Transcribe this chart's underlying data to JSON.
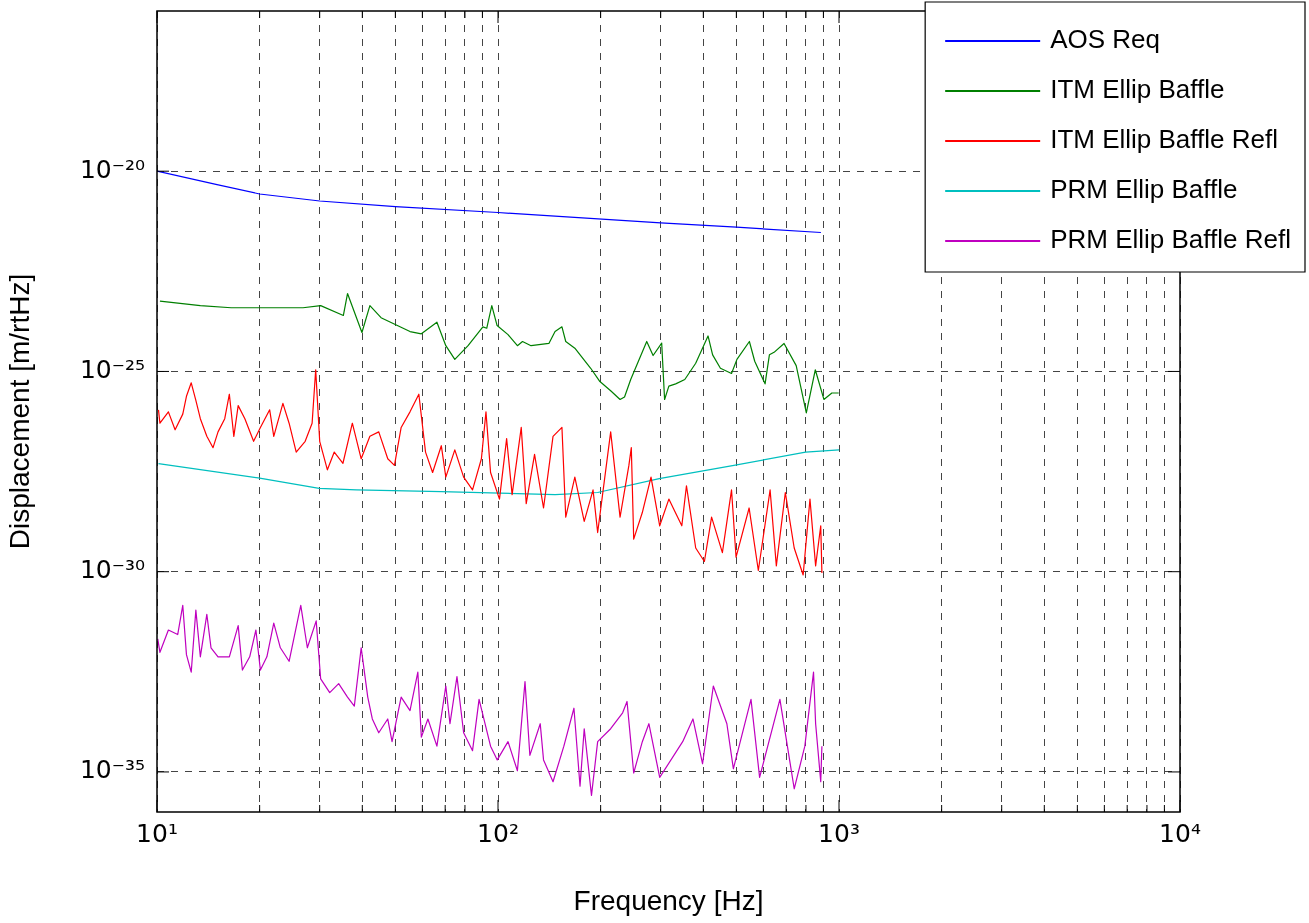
{
  "chart_data": {
    "type": "line",
    "xlabel": "Frequency [Hz]",
    "ylabel": "Displacement [m/rtHz]",
    "log": "xy",
    "grid": true,
    "legend": "top right",
    "xlim": [
      10,
      10000
    ],
    "ylim": [
      1e-36,
      1e-16
    ],
    "xticks": [
      {
        "value": 10,
        "label": "10¹"
      },
      {
        "value": 20,
        "label": null
      },
      {
        "value": 30,
        "label": null
      },
      {
        "value": 40,
        "label": null
      },
      {
        "value": 50,
        "label": null
      },
      {
        "value": 60,
        "label": null
      },
      {
        "value": 70,
        "label": null
      },
      {
        "value": 80,
        "label": null
      },
      {
        "value": 90,
        "label": null
      },
      {
        "value": 100,
        "label": "10²"
      },
      {
        "value": 200,
        "label": null
      },
      {
        "value": 300,
        "label": null
      },
      {
        "value": 400,
        "label": null
      },
      {
        "value": 500,
        "label": null
      },
      {
        "value": 600,
        "label": null
      },
      {
        "value": 700,
        "label": null
      },
      {
        "value": 800,
        "label": null
      },
      {
        "value": 900,
        "label": null
      },
      {
        "value": 1000,
        "label": "10³"
      },
      {
        "value": 2000,
        "label": null
      },
      {
        "value": 3000,
        "label": null
      },
      {
        "value": 4000,
        "label": null
      },
      {
        "value": 5000,
        "label": null
      },
      {
        "value": 6000,
        "label": null
      },
      {
        "value": 7000,
        "label": null
      },
      {
        "value": 8000,
        "label": null
      },
      {
        "value": 9000,
        "label": null
      },
      {
        "value": 10000,
        "label": "10⁴"
      }
    ],
    "yticks": [
      {
        "value": 1e-35,
        "label": "10⁻³⁵"
      },
      {
        "value": 1e-30,
        "label": "10⁻³⁰"
      },
      {
        "value": 1e-25,
        "label": "10⁻²⁵"
      },
      {
        "value": 1e-20,
        "label": "10⁻²⁰"
      }
    ],
    "series": [
      {
        "name": "AOS Req",
        "color": "#0000ff",
        "x": [
          10,
          15,
          20,
          30,
          50,
          100,
          300,
          500,
          885
        ],
        "values": [
          1e-20,
          4.6e-21,
          2.7e-21,
          1.8e-21,
          1.3e-21,
          9.3e-22,
          5.1e-22,
          4e-22,
          2.95e-22
        ]
      },
      {
        "name": "ITM Ellip Baffle",
        "color": "#007f00",
        "x": [
          10.2,
          13.4,
          16.5,
          26.8,
          30.2,
          35.2,
          36.2,
          39.9,
          42.1,
          45.4,
          55.2,
          59.6,
          66.2,
          70.3,
          74.7,
          81.7,
          90.3,
          92.7,
          95.9,
          99.4,
          107,
          114,
          118,
          125,
          141,
          147,
          154,
          158,
          168,
          187,
          199,
          214,
          228,
          235,
          245,
          273,
          285,
          302,
          308,
          317,
          332,
          353,
          380,
          413,
          426,
          449,
          484,
          502,
          546,
          566,
          607,
          625,
          645,
          690,
          749,
          802,
          852,
          903,
          953,
          998
        ],
        "values": [
          5.7e-24,
          4.4e-24,
          3.9e-24,
          3.9e-24,
          4.4e-24,
          2.5e-24,
          8.8e-24,
          9.4e-25,
          4.4e-24,
          2.2e-24,
          9.9e-25,
          8.7e-25,
          1.7e-24,
          4.4e-25,
          2e-25,
          4.4e-25,
          1.3e-24,
          1.2e-24,
          4.4e-24,
          1.4e-24,
          8.3e-25,
          4.4e-25,
          5.6e-25,
          4.4e-25,
          5e-25,
          9.9e-25,
          1.3e-24,
          5.6e-25,
          3.8e-25,
          1.2e-25,
          5.6e-26,
          3.3e-26,
          2e-26,
          2.3e-26,
          6.3e-26,
          5.6e-25,
          2.5e-25,
          5.1e-25,
          2e-26,
          4.3e-26,
          4.9e-26,
          6.3e-26,
          1.6e-25,
          7.7e-25,
          2.6e-25,
          1.2e-25,
          8.9e-26,
          2e-25,
          5.6e-25,
          1.8e-25,
          4.9e-26,
          2.6e-25,
          3e-25,
          5e-25,
          1.4e-25,
          9.2e-27,
          1.1e-25,
          2e-26,
          2.9e-26,
          2.9e-26
        ]
      },
      {
        "name": "ITM Ellip Baffle Refl",
        "color": "#ff0000",
        "x": [
          10.1,
          10.2,
          10.8,
          11.3,
          11.9,
          12.2,
          12.6,
          13,
          13.4,
          14,
          14.6,
          15.1,
          15.8,
          16.3,
          16.8,
          17.3,
          18.1,
          19.2,
          20.1,
          21.4,
          22,
          23.4,
          24.4,
          25.6,
          27.2,
          28.5,
          29.2,
          30,
          31.6,
          33.1,
          35.1,
          37.4,
          39.7,
          42.1,
          44.7,
          47.5,
          49.7,
          52,
          55.2,
          58.6,
          61.3,
          64.3,
          68.2,
          70.3,
          74.7,
          79.3,
          84.2,
          89.4,
          92.2,
          95.1,
          101,
          106,
          110,
          117,
          121,
          128,
          136,
          145,
          154,
          158,
          168,
          179,
          190,
          196,
          214,
          228,
          242,
          246,
          250,
          265,
          281,
          298,
          317,
          346,
          357,
          380,
          403,
          423,
          455,
          484,
          499,
          545,
          580,
          628,
          655,
          696,
          739,
          785,
          822,
          854,
          884,
          891
        ],
        "values": [
          1.1e-26,
          5.1e-27,
          9.8e-27,
          3.5e-27,
          8.6e-27,
          2.4e-26,
          5.2e-26,
          1.9e-26,
          6.6e-27,
          2.4e-27,
          1.25e-27,
          3.1e-27,
          6.6e-27,
          2.7e-26,
          2.4e-27,
          1.4e-26,
          6.6e-27,
          1.8e-27,
          4e-27,
          1.1e-26,
          2.4e-27,
          1.6e-26,
          5.1e-27,
          9.7e-28,
          1.8e-27,
          5.1e-27,
          1.1e-25,
          1.8e-27,
          3.5e-28,
          9.7e-28,
          5.1e-28,
          5.1e-27,
          6.6e-28,
          2.4e-27,
          3.1e-27,
          6.6e-28,
          4.5e-28,
          4e-27,
          9.8e-27,
          2.7e-26,
          9.7e-28,
          3e-28,
          1.4e-27,
          2.3e-28,
          1.1e-27,
          2.3e-28,
          1.1e-28,
          6.6e-28,
          9.8e-27,
          3e-28,
          6.5e-29,
          2.1e-27,
          8.4e-29,
          4e-27,
          5e-29,
          8.5e-28,
          3.9e-29,
          2.4e-27,
          4e-27,
          2.3e-29,
          2.3e-28,
          1.8e-29,
          1.1e-28,
          9.5e-30,
          3.1e-27,
          2.3e-29,
          4.5e-28,
          1.25e-27,
          6.5e-30,
          3e-29,
          2.3e-28,
          1.4e-29,
          6.5e-29,
          1.4e-29,
          1.4e-28,
          3.9e-30,
          1.8e-30,
          2.3e-29,
          3e-30,
          1.1e-28,
          2.3e-30,
          3.9e-29,
          1.07e-30,
          1.1e-28,
          1.4e-30,
          9.5e-29,
          3.9e-30,
          8.3e-31,
          6.5e-29,
          1.4e-30,
          1.4e-29,
          9.3e-31
        ]
      },
      {
        "name": "PRM Ellip Baffle",
        "color": "#00bfbf",
        "x": [
          10.1,
          19.8,
          29.9,
          38.4,
          68.2,
          147,
          196,
          297,
          492,
          798,
          1000
        ],
        "values": [
          5e-28,
          2.2e-28,
          1.2e-28,
          1.1e-28,
          1e-28,
          8.4e-29,
          9.5e-29,
          2.1e-28,
          4.5e-28,
          9.7e-28,
          1.1e-27
        ]
      },
      {
        "name": "PRM Ellip Baffle Refl",
        "color": "#bf00bf",
        "x": [
          10.05,
          10.2,
          10.8,
          11.5,
          11.9,
          12.2,
          12.6,
          13,
          13.4,
          14,
          14.4,
          15.1,
          16.3,
          17.3,
          17.8,
          18.7,
          19.5,
          20.1,
          21,
          22,
          23,
          24.4,
          26.4,
          27.6,
          29.3,
          30.2,
          32.1,
          34.1,
          36.2,
          37.9,
          39.7,
          41.5,
          42.8,
          44.7,
          47.5,
          48.9,
          52,
          55.2,
          58.2,
          59.6,
          62.3,
          66.2,
          70.3,
          72.3,
          75.8,
          79.3,
          84.2,
          88,
          95.1,
          99.5,
          107,
          114,
          120,
          124,
          133,
          136,
          145,
          156,
          167,
          174,
          179,
          188,
          196,
          214,
          232,
          239,
          250,
          265,
          277,
          298,
          348,
          373,
          398,
          428,
          469,
          490,
          552,
          585,
          671,
          739,
          794,
          842,
          854,
          884,
          891
        ],
        "values": [
          2.1e-32,
          9.7e-33,
          3.5e-32,
          2.7e-32,
          1.45e-31,
          8.5e-33,
          3.1e-33,
          1.1e-31,
          7.5e-33,
          8.6e-32,
          1.26e-32,
          7.5e-33,
          7.5e-33,
          4.5e-32,
          3.5e-33,
          7.5e-33,
          3.5e-32,
          3.5e-33,
          7.5e-33,
          5.2e-32,
          1.26e-32,
          5.8e-33,
          1.45e-31,
          1.26e-32,
          5.9e-32,
          2.1e-33,
          9.6e-34,
          1.6e-33,
          7.4e-34,
          4.4e-34,
          1.26e-32,
          7.4e-34,
          2.1e-34,
          9.5e-35,
          2.1e-34,
          5.7e-35,
          7.4e-34,
          3.4e-34,
          3.1e-33,
          7.4e-35,
          2.1e-34,
          4.4e-35,
          1.4e-33,
          1.6e-34,
          2.4e-33,
          9.5e-35,
          3.4e-35,
          6.5e-34,
          4.4e-35,
          2e-35,
          5.7e-35,
          1.07e-35,
          1.8e-33,
          2.6e-35,
          1.6e-34,
          2e-35,
          5.7e-36,
          4.4e-35,
          3.9e-34,
          4.4e-36,
          1.2e-34,
          2.6e-36,
          5.7e-35,
          1.2e-34,
          3e-34,
          5.75e-34,
          9.4e-36,
          5.7e-35,
          1.6e-34,
          7.3e-36,
          5.7e-35,
          2.1e-34,
          1.6e-35,
          1.4e-33,
          1.6e-34,
          1.2e-35,
          6.5e-34,
          7.3e-36,
          6.5e-34,
          3.8e-36,
          4.4e-35,
          3.1e-33,
          1.6e-34,
          5.7e-36,
          4.4e-35
        ]
      }
    ]
  }
}
